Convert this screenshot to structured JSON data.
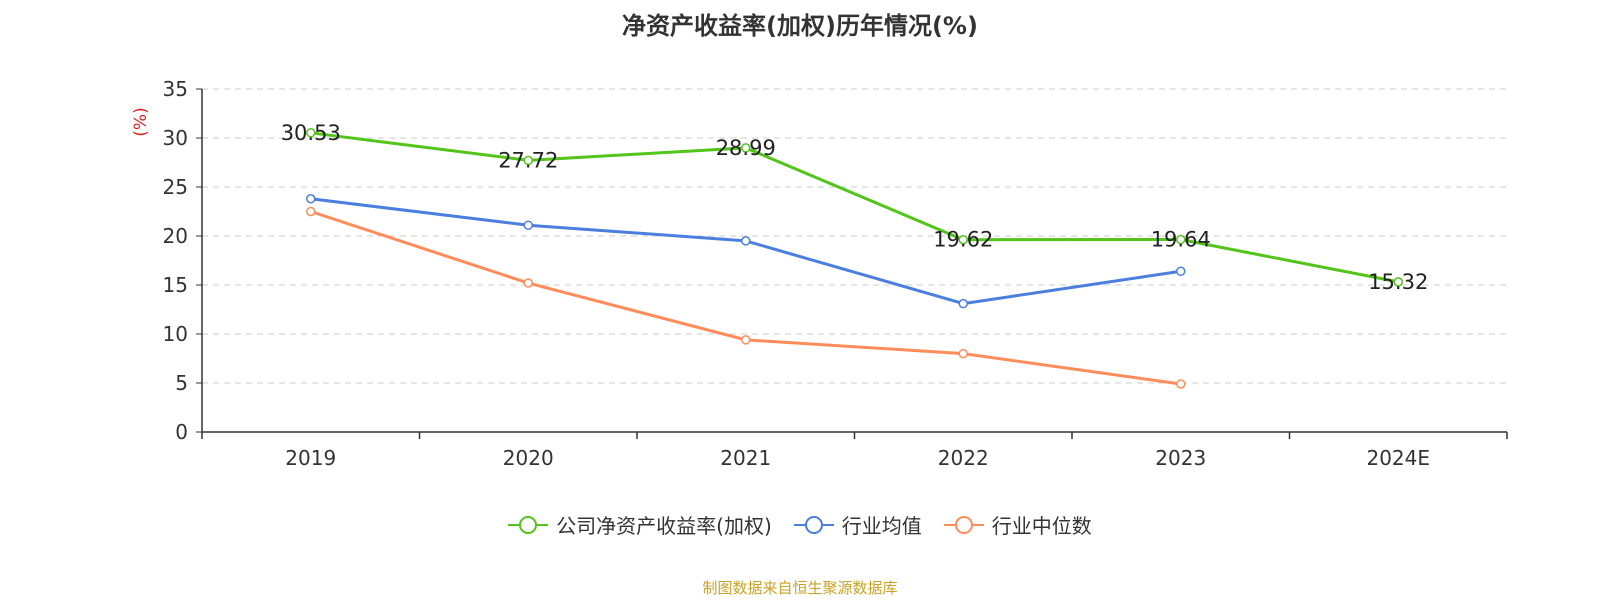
{
  "chart_data": {
    "type": "line",
    "title": "净资产收益率(加权)历年情况(%)",
    "ylabel": "(%)",
    "xlabel": "",
    "categories": [
      "2019",
      "2020",
      "2021",
      "2022",
      "2023",
      "2024E"
    ],
    "ylim": [
      0,
      35
    ],
    "yticks": [
      0,
      5,
      10,
      15,
      20,
      25,
      30,
      35
    ],
    "grid": true,
    "legend_position": "bottom",
    "series": [
      {
        "name": "公司净资产收益率(加权)",
        "color": "#52c41a",
        "values": [
          30.53,
          27.72,
          28.99,
          19.62,
          19.64,
          15.32
        ],
        "data_labels": [
          "30.53",
          "27.72",
          "28.99",
          "19.62",
          "19.64",
          "15.32"
        ]
      },
      {
        "name": "行业均值",
        "color": "#4a7fe0",
        "values": [
          23.8,
          21.1,
          19.5,
          13.1,
          16.4,
          null
        ]
      },
      {
        "name": "行业中位数",
        "color": "#ff8c5a",
        "values": [
          22.5,
          15.2,
          9.4,
          8.0,
          4.9,
          null
        ]
      }
    ]
  },
  "source": "制图数据来自恒生聚源数据库"
}
